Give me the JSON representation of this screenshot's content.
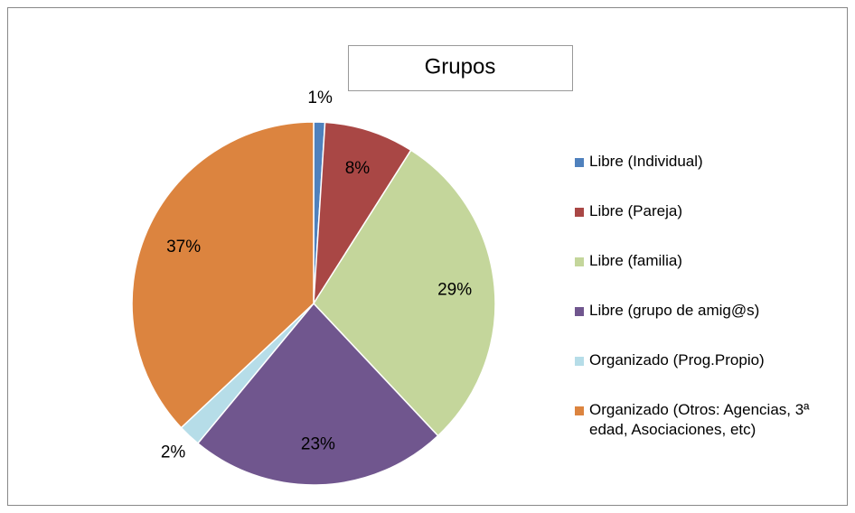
{
  "chart_data": {
    "type": "pie",
    "title": "Grupos",
    "categories": [
      "Libre (Individual)",
      "Libre (Pareja)",
      "Libre (familia)",
      "Libre (grupo de amig@s)",
      "Organizado (Prog.Propio)",
      "Organizado (Otros: Agencias, 3ª edad, Asociaciones, etc)"
    ],
    "values": [
      1,
      8,
      29,
      23,
      2,
      37
    ],
    "value_labels": [
      "1%",
      "8%",
      "29%",
      "23%",
      "2%",
      "37%"
    ],
    "colors": [
      "#4f81bd",
      "#a94745",
      "#c4d69b",
      "#70568e",
      "#b6dde8",
      "#dc843f"
    ],
    "legend": "right"
  }
}
